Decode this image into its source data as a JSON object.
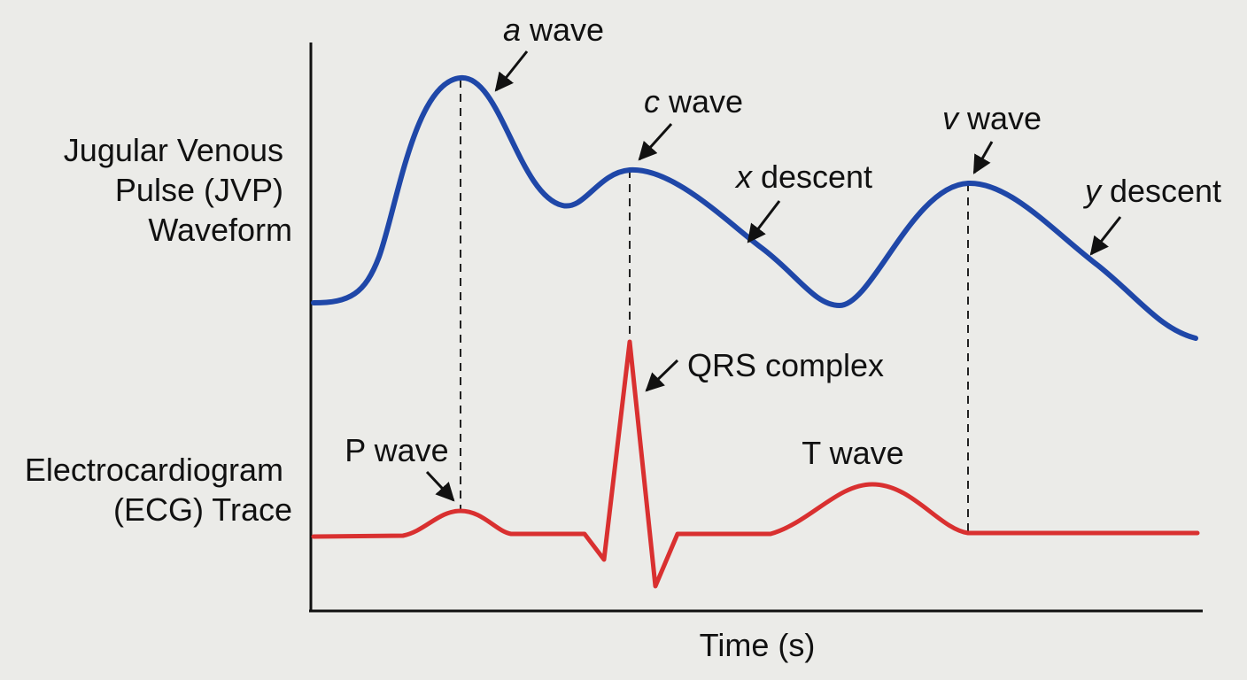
{
  "colors": {
    "background": "#ebebe8",
    "jvp": "#1f47a8",
    "ecg": "#d93030",
    "axis": "#111111",
    "guide": "#222222"
  },
  "row_labels": {
    "jvp": [
      "Jugular Venous",
      "Pulse (JVP)",
      "Waveform"
    ],
    "ecg": [
      "Electrocardiogram",
      "(ECG) Trace"
    ]
  },
  "axis": {
    "x_label": "Time (s)"
  },
  "jvp_annotations": {
    "a_wave": {
      "italic": "a",
      "rest": " wave"
    },
    "c_wave": {
      "italic": "c",
      "rest": " wave"
    },
    "x_descent": {
      "italic": "x",
      "rest": " descent"
    },
    "v_wave": {
      "italic": "v",
      "rest": " wave"
    },
    "y_descent": {
      "italic": "y",
      "rest": " descent"
    }
  },
  "ecg_annotations": {
    "p_wave": "P wave",
    "qrs_complex": "QRS complex",
    "t_wave": "T wave"
  }
}
